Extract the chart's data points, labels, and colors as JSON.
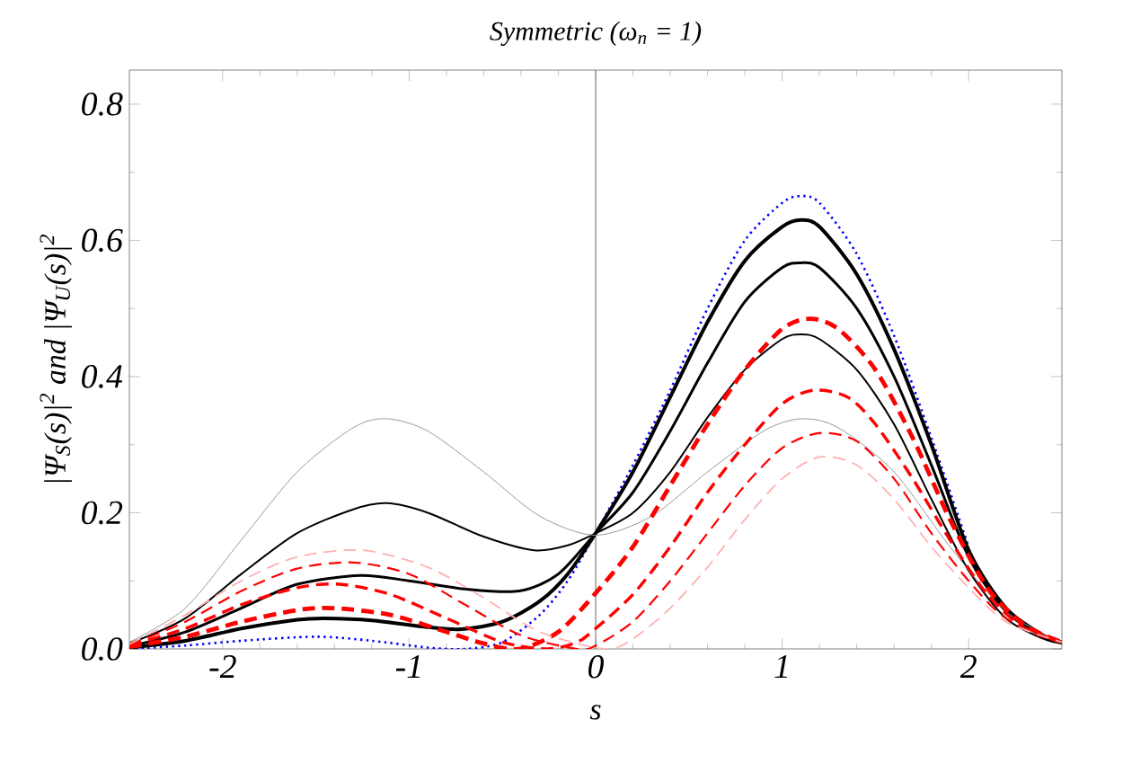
{
  "chart_data": {
    "type": "line",
    "title": "Symmetric (ω$_{n}$ = 1)",
    "xlabel": "s",
    "ylabel": "|Ψ$_{S}$(s)|$^{2}$ and |Ψ$_{U}$(s)|$^{2}$",
    "xlim": [
      -2.5,
      2.5
    ],
    "ylim": [
      0,
      0.85
    ],
    "xticks": [
      -2,
      -1,
      0,
      1,
      2
    ],
    "yticks": [
      {
        "value": 0,
        "label": "0.0"
      },
      0.2,
      0.4,
      0.6,
      0.8
    ],
    "grid": false,
    "marker": "none",
    "ref_lines": [
      {
        "axis": "x",
        "value": 0,
        "color": "#808080"
      }
    ],
    "series": [
      {
        "color": "#0000ff",
        "line_style": "dotted",
        "x": [
          -2.5,
          -2.2,
          -1.9,
          -1.5,
          -1.2,
          -0.9,
          -0.7,
          -0.5,
          -0.3,
          -0.15,
          0,
          0.2,
          0.4,
          0.6,
          0.8,
          1.0,
          1.1,
          1.2,
          1.4,
          1.6,
          1.8,
          2.0
        ],
        "values": [
          0.0,
          0.005,
          0.012,
          0.018,
          0.012,
          0.002,
          0.0,
          0.01,
          0.05,
          0.1,
          0.17,
          0.27,
          0.38,
          0.5,
          0.6,
          0.655,
          0.665,
          0.655,
          0.58,
          0.46,
          0.31,
          0.15
        ]
      },
      {
        "color": "#000000",
        "line_style": "solid",
        "x": [
          -2.5,
          -2.2,
          -1.9,
          -1.6,
          -1.45,
          -1.2,
          -0.9,
          -0.72,
          -0.5,
          -0.3,
          -0.15,
          0,
          0.2,
          0.4,
          0.6,
          0.8,
          1.0,
          1.1,
          1.2,
          1.4,
          1.6,
          1.8,
          2.0,
          2.2,
          2.4,
          2.5
        ],
        "values": [
          0.002,
          0.012,
          0.03,
          0.043,
          0.045,
          0.042,
          0.032,
          0.029,
          0.04,
          0.07,
          0.11,
          0.17,
          0.26,
          0.37,
          0.48,
          0.57,
          0.62,
          0.63,
          0.62,
          0.55,
          0.44,
          0.3,
          0.145,
          0.06,
          0.02,
          0.01
        ]
      },
      {
        "color": "#000000",
        "line_style": "solid",
        "x": [
          -2.5,
          -2.2,
          -1.9,
          -1.6,
          -1.26,
          -1.0,
          -0.7,
          -0.41,
          -0.2,
          0,
          0.2,
          0.4,
          0.6,
          0.8,
          1.0,
          1.1,
          1.2,
          1.4,
          1.6,
          1.8,
          2.0,
          2.2,
          2.4,
          2.5
        ],
        "values": [
          0.004,
          0.025,
          0.06,
          0.095,
          0.108,
          0.1,
          0.088,
          0.085,
          0.11,
          0.17,
          0.23,
          0.32,
          0.42,
          0.51,
          0.56,
          0.567,
          0.56,
          0.5,
          0.4,
          0.27,
          0.135,
          0.055,
          0.018,
          0.01
        ]
      },
      {
        "color": "#000000",
        "line_style": "solid",
        "x": [
          -2.5,
          -2.2,
          -1.9,
          -1.6,
          -1.3,
          -1.12,
          -0.9,
          -0.6,
          -0.33,
          -0.15,
          0,
          0.2,
          0.4,
          0.6,
          0.8,
          1.0,
          1.1,
          1.2,
          1.4,
          1.6,
          1.8,
          2.0,
          2.2,
          2.4,
          2.5
        ],
        "values": [
          0.008,
          0.045,
          0.11,
          0.17,
          0.205,
          0.214,
          0.2,
          0.165,
          0.145,
          0.152,
          0.17,
          0.2,
          0.26,
          0.34,
          0.41,
          0.455,
          0.462,
          0.455,
          0.41,
          0.33,
          0.22,
          0.115,
          0.045,
          0.015,
          0.008
        ]
      },
      {
        "color": "#999999",
        "line_style": "solid",
        "x": [
          -2.5,
          -2.2,
          -1.9,
          -1.6,
          -1.3,
          -1.12,
          -0.9,
          -0.6,
          -0.3,
          0,
          0.3,
          0.6,
          0.9,
          1.1,
          1.3,
          1.6,
          1.9,
          2.2,
          2.5
        ],
        "values": [
          0.01,
          0.06,
          0.16,
          0.26,
          0.325,
          0.338,
          0.32,
          0.26,
          0.195,
          0.167,
          0.195,
          0.26,
          0.32,
          0.338,
          0.325,
          0.26,
          0.15,
          0.055,
          0.01
        ]
      },
      {
        "color": "#ff0000",
        "line_style": "dashed",
        "x": [
          -2.5,
          -2.2,
          -1.9,
          -1.6,
          -1.41,
          -1.1,
          -0.8,
          -0.6,
          -0.41,
          -0.2,
          0,
          0.2,
          0.4,
          0.6,
          0.8,
          1.0,
          1.15,
          1.3,
          1.5,
          1.7,
          1.9,
          2.1,
          2.3,
          2.5
        ],
        "values": [
          0.003,
          0.018,
          0.04,
          0.057,
          0.06,
          0.05,
          0.025,
          0.008,
          0.0,
          0.025,
          0.082,
          0.15,
          0.24,
          0.33,
          0.41,
          0.47,
          0.485,
          0.47,
          0.41,
          0.31,
          0.19,
          0.09,
          0.035,
          0.01
        ]
      },
      {
        "color": "#ff0000",
        "line_style": "dashed",
        "x": [
          -2.5,
          -2.2,
          -1.9,
          -1.6,
          -1.37,
          -1.1,
          -0.8,
          -0.5,
          -0.26,
          -0.1,
          0,
          0.2,
          0.4,
          0.6,
          0.8,
          1.0,
          1.17,
          1.35,
          1.5,
          1.7,
          1.9,
          2.1,
          2.3,
          2.5
        ],
        "values": [
          0.005,
          0.03,
          0.065,
          0.09,
          0.095,
          0.08,
          0.045,
          0.01,
          0.0,
          0.01,
          0.03,
          0.08,
          0.15,
          0.23,
          0.3,
          0.36,
          0.38,
          0.37,
          0.33,
          0.25,
          0.16,
          0.08,
          0.03,
          0.01
        ]
      },
      {
        "color": "#ff0000",
        "line_style": "dashed",
        "x": [
          -2.5,
          -2.2,
          -1.9,
          -1.6,
          -1.3,
          -1.0,
          -0.7,
          -0.4,
          -0.1,
          0,
          0.2,
          0.4,
          0.6,
          0.8,
          1.0,
          1.2,
          1.4,
          1.6,
          1.8,
          2.0,
          2.2,
          2.5
        ],
        "values": [
          0.006,
          0.04,
          0.085,
          0.118,
          0.127,
          0.11,
          0.065,
          0.02,
          0.0,
          0.005,
          0.04,
          0.1,
          0.17,
          0.24,
          0.295,
          0.317,
          0.305,
          0.25,
          0.17,
          0.1,
          0.045,
          0.01
        ]
      },
      {
        "color": "#ffb0b0",
        "line_style": "dashed",
        "x": [
          -2.5,
          -2.2,
          -1.9,
          -1.6,
          -1.25,
          -0.9,
          -0.6,
          -0.3,
          0.05,
          0.2,
          0.4,
          0.6,
          0.8,
          1.0,
          1.2,
          1.4,
          1.6,
          1.8,
          2.0,
          2.2,
          2.5
        ],
        "values": [
          0.007,
          0.05,
          0.1,
          0.135,
          0.145,
          0.12,
          0.075,
          0.025,
          0.0,
          0.015,
          0.06,
          0.12,
          0.19,
          0.25,
          0.282,
          0.27,
          0.22,
          0.15,
          0.09,
          0.04,
          0.01
        ]
      }
    ]
  }
}
